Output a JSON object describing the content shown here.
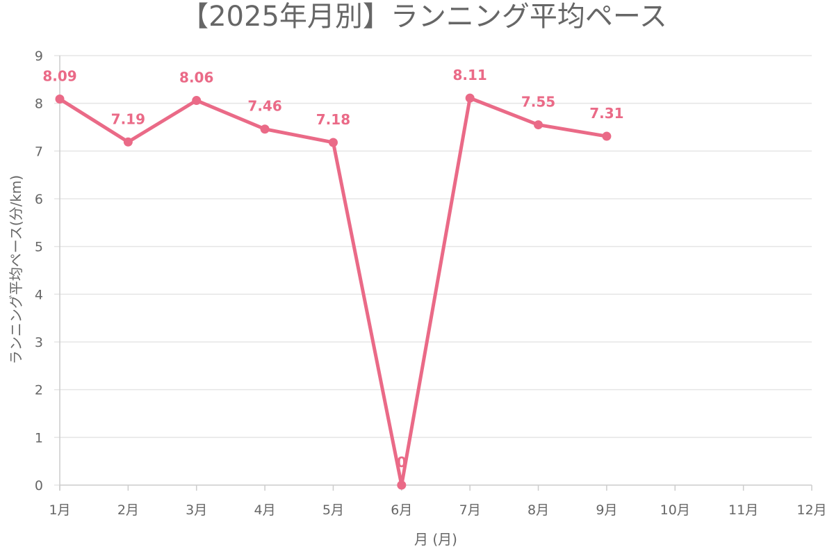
{
  "chart_data": {
    "type": "line",
    "title": "【2025年月別】ランニング平均ペース",
    "xlabel": "月 (月)",
    "ylabel": "ランニング平均ペース(分/km)",
    "categories": [
      "1月",
      "2月",
      "3月",
      "4月",
      "5月",
      "6月",
      "7月",
      "8月",
      "9月",
      "10月",
      "11月",
      "12月"
    ],
    "series": [
      {
        "values": [
          8.09,
          7.19,
          8.06,
          7.46,
          7.18,
          0,
          8.11,
          7.55,
          7.31,
          null,
          null,
          null
        ],
        "data_labels": [
          "8.09",
          "7.19",
          "8.06",
          "7.46",
          "7.18",
          "0",
          "8.11",
          "7.55",
          "7.31",
          "",
          "",
          ""
        ],
        "color": "#ea6a87"
      }
    ],
    "ylim": [
      0,
      9
    ],
    "yticks": [
      "0",
      "1",
      "2",
      "3",
      "4",
      "5",
      "6",
      "7",
      "8",
      "9"
    ],
    "grid": true,
    "legend": "none"
  }
}
